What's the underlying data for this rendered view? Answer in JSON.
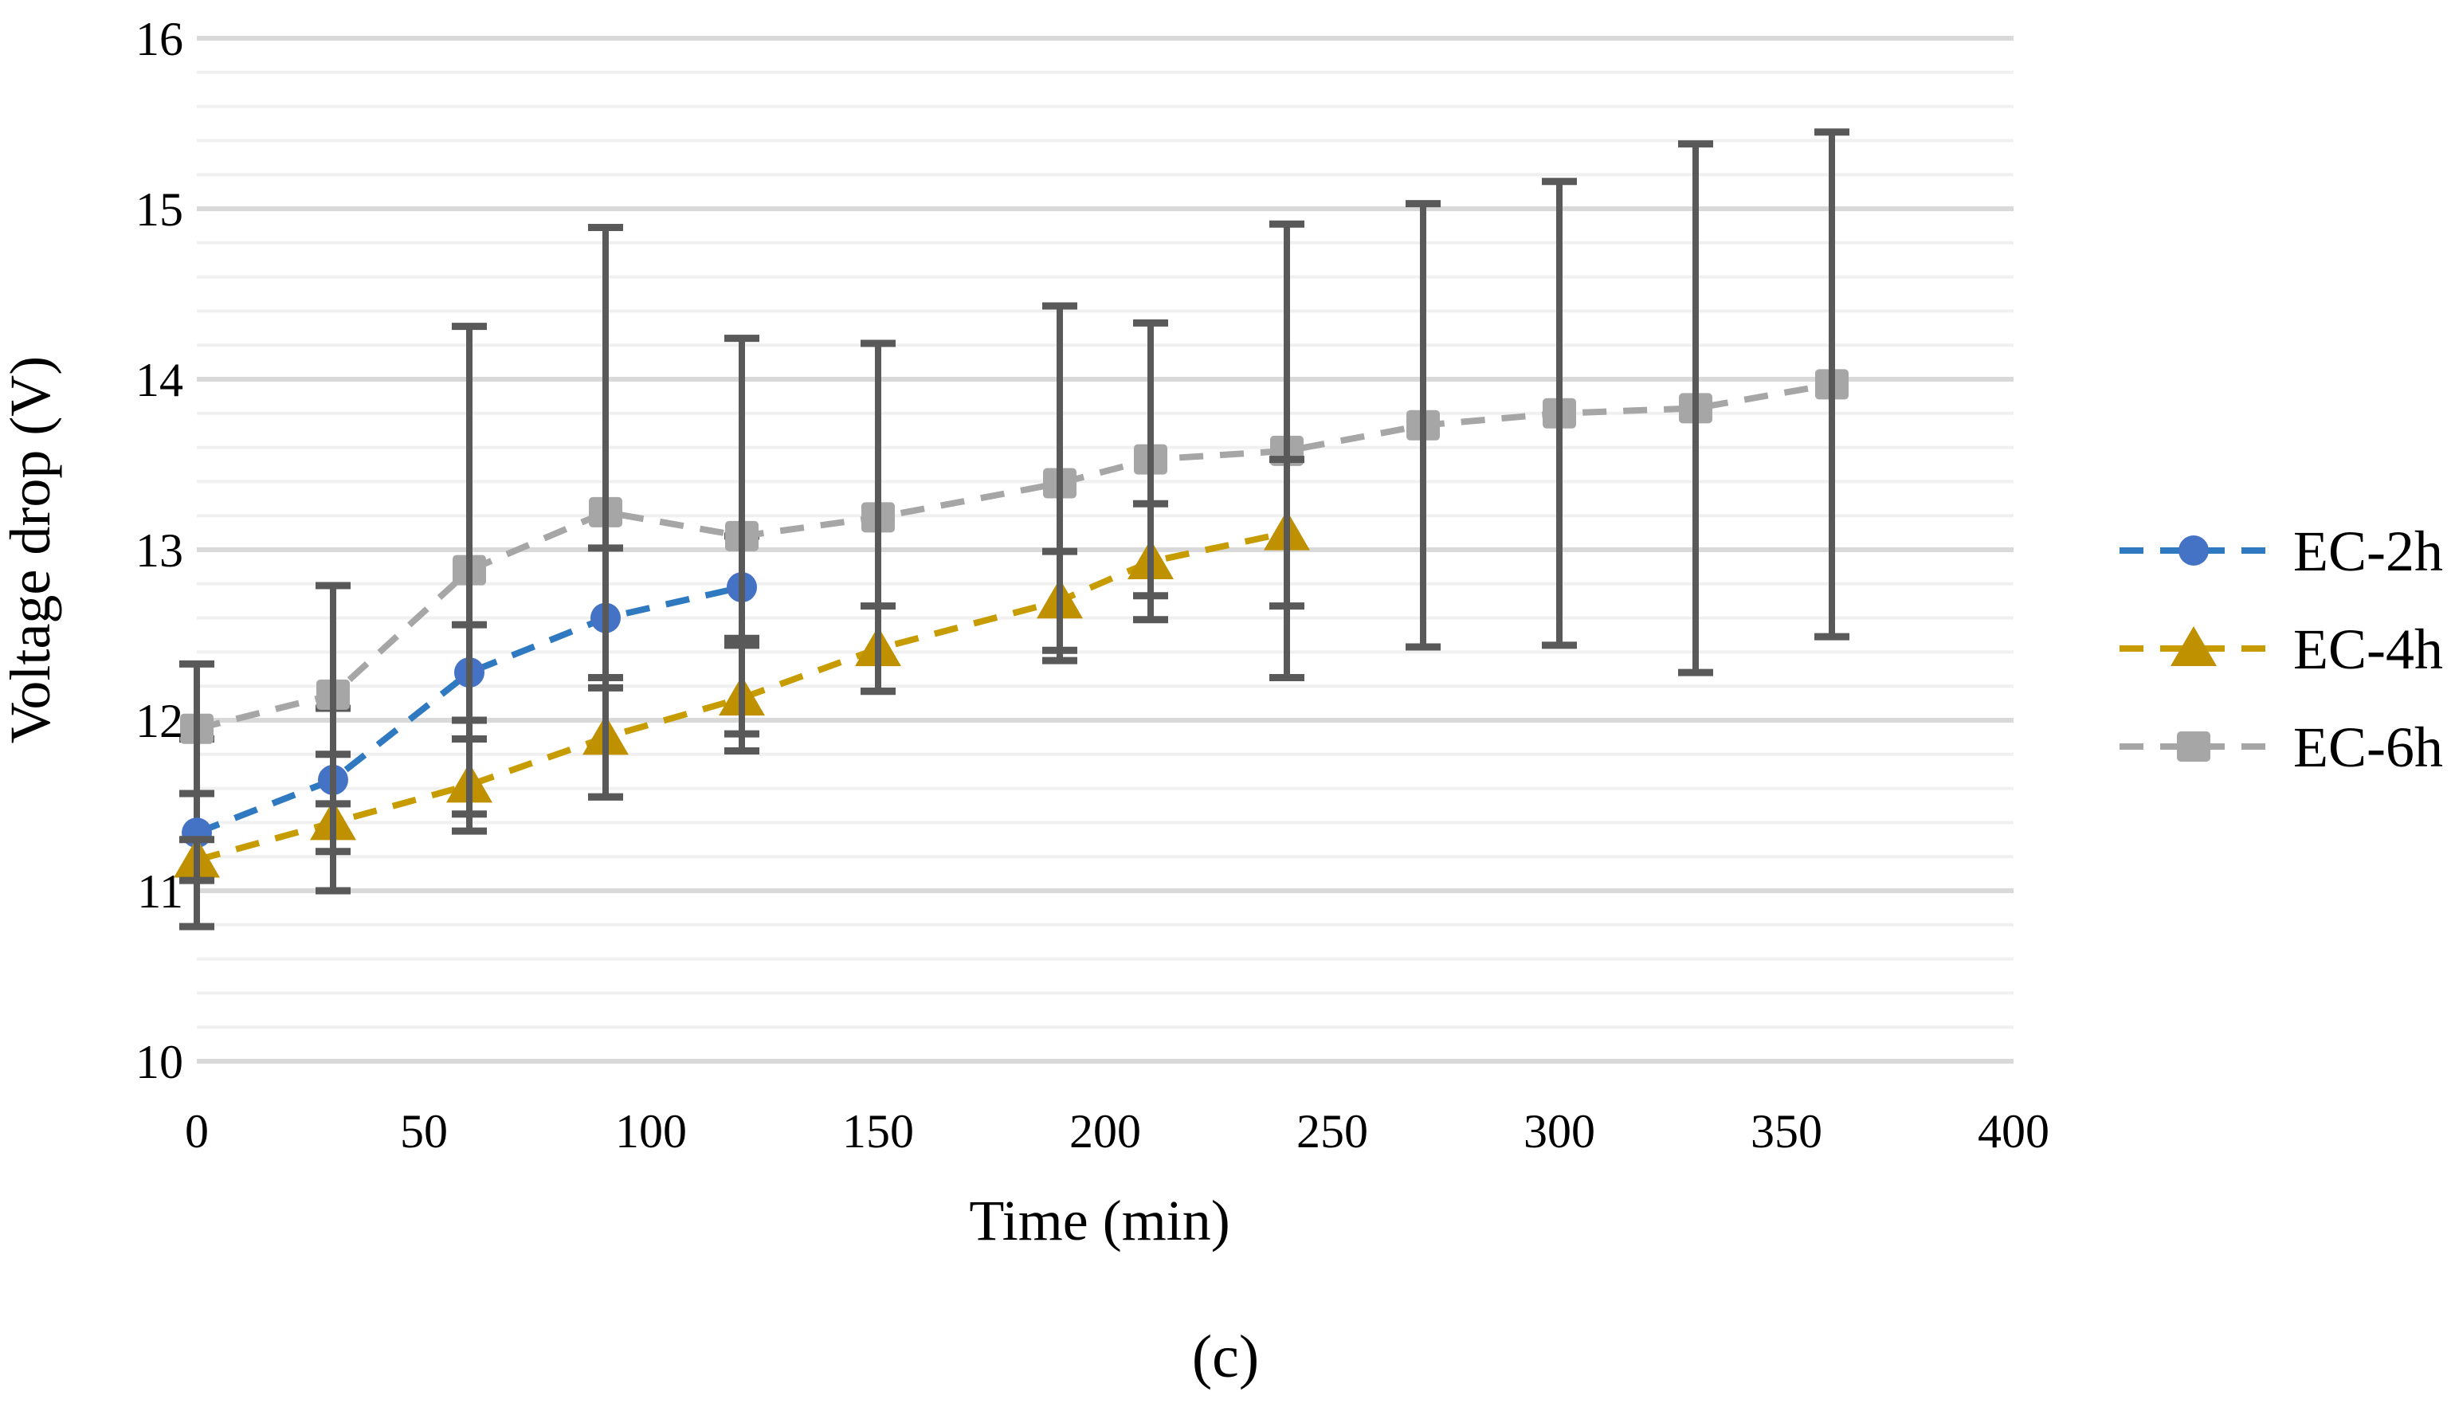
{
  "figure": {
    "caption": "(c)",
    "background_color": "#FFFFFF",
    "text_color": "#000000"
  },
  "chart_data": {
    "type": "line",
    "title": "",
    "xlabel": "Time (min)",
    "ylabel": "Voltage drop (V)",
    "xlim": [
      0,
      400
    ],
    "ylim": [
      10,
      16
    ],
    "x_ticks": [
      0,
      50,
      100,
      150,
      200,
      250,
      300,
      350,
      400
    ],
    "y_ticks": [
      10,
      11,
      12,
      13,
      14,
      15,
      16
    ],
    "y_minor_step": 0.2,
    "grid": "horizontal, major and minor",
    "legend_position": "right",
    "line_style": "dashed",
    "error_bar_color": "#595959",
    "gridline_major_color": "#D9D9D9",
    "gridline_minor_color": "#F0F0F0",
    "series": [
      {
        "name": "EC-2h",
        "marker": "circle",
        "line_color": "#2E79C0",
        "marker_color": "#4472C4",
        "x": [
          0,
          30,
          60,
          90,
          120
        ],
        "y": [
          11.34,
          11.65,
          12.28,
          12.6,
          12.78
        ],
        "yerr": [
          0.55,
          0.42,
          0.28,
          0.41,
          0.3
        ]
      },
      {
        "name": "EC-4h",
        "marker": "triangle",
        "line_color": "#C79C00",
        "marker_color": "#BF9000",
        "x": [
          0,
          30,
          60,
          90,
          120,
          150,
          190,
          210,
          240
        ],
        "y": [
          11.18,
          11.4,
          11.62,
          11.9,
          12.13,
          12.42,
          12.7,
          12.93,
          13.1
        ],
        "yerr": [
          0.12,
          0.4,
          0.27,
          0.35,
          0.31,
          0.25,
          0.29,
          0.34,
          0.43
        ]
      },
      {
        "name": "EC-6h",
        "marker": "square",
        "line_color": "#A6A6A6",
        "marker_color": "#A6A6A6",
        "x": [
          0,
          30,
          60,
          90,
          120,
          150,
          190,
          210,
          240,
          270,
          300,
          330,
          360
        ],
        "y": [
          11.95,
          12.15,
          12.88,
          13.22,
          13.08,
          13.19,
          13.39,
          13.53,
          13.58,
          13.73,
          13.8,
          13.83,
          13.97
        ],
        "yerr": [
          0.38,
          0.64,
          1.43,
          1.67,
          1.16,
          1.02,
          1.04,
          0.8,
          1.33,
          1.3,
          1.36,
          1.55,
          1.48
        ]
      }
    ]
  }
}
